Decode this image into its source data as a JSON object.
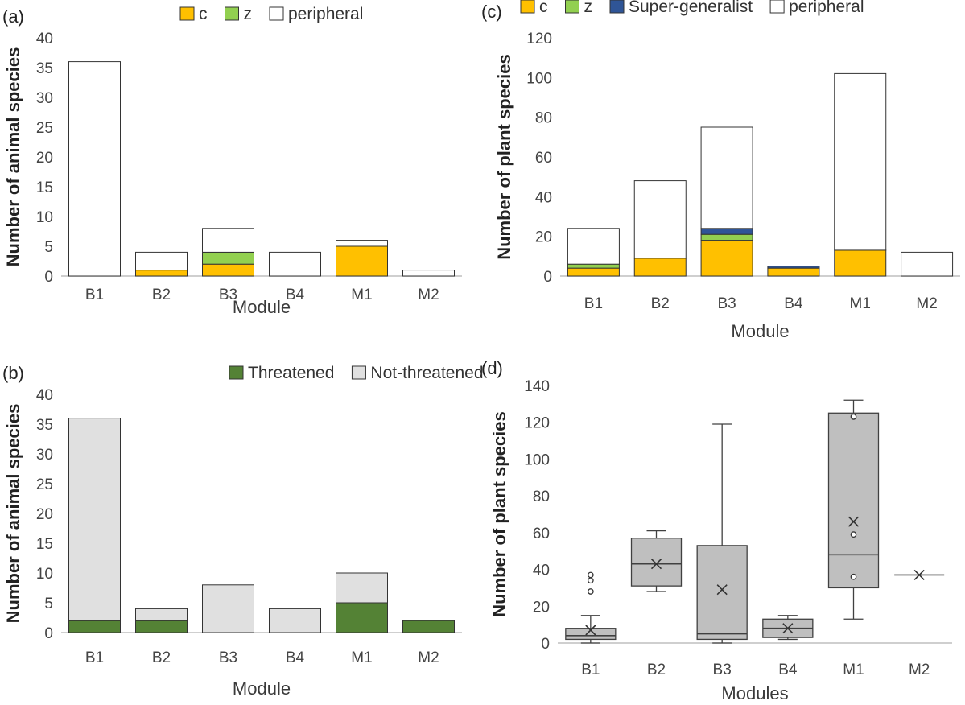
{
  "chart_data": [
    {
      "panel": "(a)",
      "type": "bar",
      "stacked": true,
      "categories": [
        "B1",
        "B2",
        "B3",
        "B4",
        "M1",
        "M2"
      ],
      "series": [
        {
          "name": "c",
          "color": "#FFC000",
          "values": [
            0,
            1,
            2,
            0,
            5,
            0
          ]
        },
        {
          "name": "z",
          "color": "#92D050",
          "values": [
            0,
            0,
            2,
            0,
            0,
            0
          ]
        },
        {
          "name": "peripheral",
          "color": "#FFFFFF",
          "values": [
            36,
            3,
            4,
            4,
            1,
            1
          ]
        }
      ],
      "xlabel": "Module",
      "ylabel": "Number of animal species",
      "ylim": [
        0,
        40
      ],
      "yticks": [
        0,
        5,
        10,
        15,
        20,
        25,
        30,
        35,
        40
      ],
      "legend": "top"
    },
    {
      "panel": "(c)",
      "type": "bar",
      "stacked": true,
      "categories": [
        "B1",
        "B2",
        "B3",
        "B4",
        "M1",
        "M2"
      ],
      "series": [
        {
          "name": "c",
          "color": "#FFC000",
          "values": [
            4,
            9,
            18,
            4,
            13,
            0
          ]
        },
        {
          "name": "z",
          "color": "#92D050",
          "values": [
            2,
            0,
            3,
            0,
            0,
            0
          ]
        },
        {
          "name": "Super-generalist",
          "color": "#2F5597",
          "values": [
            0,
            0,
            3,
            1,
            0,
            0
          ]
        },
        {
          "name": "peripheral",
          "color": "#FFFFFF",
          "values": [
            18,
            39,
            51,
            0,
            89,
            12
          ]
        }
      ],
      "xlabel": "Module",
      "ylabel": "Number of plant species",
      "ylim": [
        0,
        120
      ],
      "yticks": [
        0,
        20,
        40,
        60,
        80,
        100,
        120
      ],
      "legend": "top"
    },
    {
      "panel": "(b)",
      "type": "bar",
      "stacked": true,
      "categories": [
        "B1",
        "B2",
        "B3",
        "B4",
        "M1",
        "M2"
      ],
      "series": [
        {
          "name": "Threatened",
          "color": "#548235",
          "values": [
            2,
            2,
            0,
            0,
            5,
            2
          ]
        },
        {
          "name": "Not-threatened",
          "color": "#E0E0E0",
          "values": [
            34,
            2,
            8,
            4,
            5,
            0
          ]
        }
      ],
      "xlabel": "Module",
      "ylabel": "Number of animal species",
      "ylim": [
        0,
        40
      ],
      "yticks": [
        0,
        5,
        10,
        15,
        20,
        25,
        30,
        35,
        40
      ],
      "legend": "top"
    },
    {
      "panel": "(d)",
      "type": "boxplot",
      "categories": [
        "B1",
        "B2",
        "B3",
        "B4",
        "M1",
        "M2"
      ],
      "boxes": [
        {
          "min": 0,
          "q1": 2,
          "median": 4,
          "q3": 8,
          "max": 15,
          "mean": 7,
          "outliers": [
            28,
            34,
            37
          ]
        },
        {
          "min": 28,
          "q1": 31,
          "median": 43,
          "q3": 57,
          "max": 61,
          "mean": 43,
          "outliers": []
        },
        {
          "min": 0,
          "q1": 2,
          "median": 5,
          "q3": 53,
          "max": 119,
          "mean": 29,
          "outliers": []
        },
        {
          "min": 2,
          "q1": 3,
          "median": 8,
          "q3": 13,
          "max": 15,
          "mean": 8,
          "outliers": []
        },
        {
          "min": 13,
          "q1": 30,
          "median": 48,
          "q3": 125,
          "max": 132,
          "mean": 66,
          "outliers": [
            36,
            59,
            123
          ]
        },
        {
          "min": 37,
          "q1": 37,
          "median": 37,
          "q3": 37,
          "max": 37,
          "mean": 37,
          "outliers": []
        }
      ],
      "box_color": "#BFBFBF",
      "xlabel": "Modules",
      "ylabel": "Number of plant species",
      "ylim": [
        0,
        140
      ],
      "yticks": [
        0,
        20,
        40,
        60,
        80,
        100,
        120,
        140
      ]
    }
  ]
}
